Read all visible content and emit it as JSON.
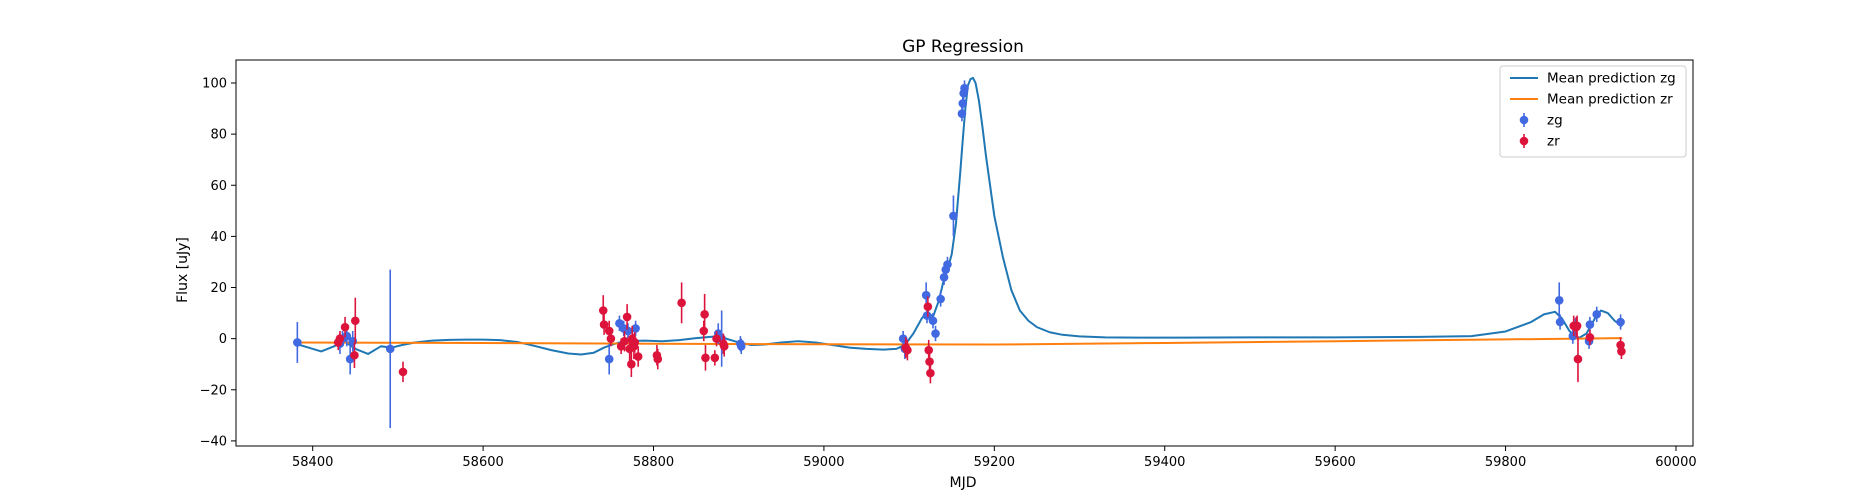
{
  "chart_data": {
    "type": "scatter",
    "title": "GP Regression",
    "xlabel": "MJD",
    "ylabel": "Flux [uJy]",
    "xlim": [
      58310,
      60020
    ],
    "ylim": [
      -42,
      109
    ],
    "xticks": [
      58400,
      58600,
      58800,
      59000,
      59200,
      59400,
      59600,
      59800,
      60000
    ],
    "yticks": [
      -40,
      -20,
      0,
      20,
      40,
      60,
      80,
      100
    ],
    "xtick_labels": [
      "58400",
      "58600",
      "58800",
      "59000",
      "59200",
      "59400",
      "59600",
      "59800",
      "60000"
    ],
    "ytick_labels": [
      "−40",
      "−20",
      "0",
      "20",
      "40",
      "60",
      "80",
      "100"
    ],
    "grid": false,
    "legend_position": "top-right",
    "lines": [
      {
        "name": "Mean prediction zg",
        "color": "#1f77b4",
        "x": [
          58380,
          58395,
          58410,
          58425,
          58437,
          58450,
          58465,
          58480,
          58493,
          58505,
          58520,
          58540,
          58560,
          58580,
          58600,
          58620,
          58640,
          58660,
          58680,
          58700,
          58715,
          58730,
          58742,
          58750,
          58760,
          58770,
          58790,
          58810,
          58830,
          58850,
          58870,
          58885,
          58900,
          58915,
          58930,
          58950,
          58970,
          58990,
          59010,
          59030,
          59050,
          59070,
          59085,
          59095,
          59105,
          59115,
          59122,
          59128,
          59135,
          59140,
          59145,
          59150,
          59155,
          59160,
          59163,
          59166,
          59169,
          59172,
          59175,
          59178,
          59182,
          59186,
          59190,
          59195,
          59200,
          59210,
          59220,
          59230,
          59240,
          59250,
          59265,
          59280,
          59300,
          59330,
          59370,
          59420,
          59500,
          59600,
          59700,
          59760,
          59800,
          59830,
          59845,
          59858,
          59866,
          59875,
          59885,
          59895,
          59905,
          59912,
          59920,
          59928,
          59936
        ],
        "y": [
          -2,
          -3.5,
          -5,
          -3,
          -1,
          -4,
          -6,
          -3,
          -3.5,
          -2.5,
          -1.5,
          -0.8,
          -0.5,
          -0.4,
          -0.4,
          -0.6,
          -1.3,
          -2.8,
          -4.5,
          -5.8,
          -6.2,
          -5.5,
          -3.5,
          -2.5,
          -1.5,
          -0.9,
          -0.8,
          -1,
          -0.6,
          0.2,
          0.8,
          0,
          -1.5,
          -2.5,
          -2.3,
          -1.5,
          -1,
          -1.5,
          -2.5,
          -3.5,
          -4,
          -4.3,
          -4,
          -2.5,
          2,
          8,
          10.5,
          8.5,
          15,
          22,
          27,
          33,
          45,
          65,
          78,
          90,
          99,
          101.5,
          102,
          100,
          93,
          83,
          72,
          60,
          48,
          32,
          19,
          11,
          7,
          4.5,
          2.5,
          1.5,
          0.9,
          0.5,
          0.4,
          0.4,
          0.5,
          0.5,
          0.7,
          1,
          2.8,
          6.5,
          9.5,
          10.5,
          8,
          3,
          0,
          2,
          8,
          11,
          10,
          7,
          5
        ]
      },
      {
        "name": "Mean prediction zr",
        "color": "#ff7f0e",
        "x": [
          58380,
          58600,
          58800,
          59000,
          59200,
          59400,
          59600,
          59800,
          59936
        ],
        "y": [
          -1.5,
          -1.7,
          -2,
          -2.2,
          -2.3,
          -1.7,
          -1,
          -0.3,
          0.2
        ]
      }
    ],
    "series": [
      {
        "name": "zg",
        "color": "#4169e1",
        "points": [
          {
            "x": 58382,
            "y": -1.5,
            "err": 8
          },
          {
            "x": 58432,
            "y": -2,
            "err": 4
          },
          {
            "x": 58435,
            "y": 0,
            "err": 3
          },
          {
            "x": 58440,
            "y": 1,
            "err": 4
          },
          {
            "x": 58444,
            "y": -8,
            "err": 6
          },
          {
            "x": 58447,
            "y": -1,
            "err": 4
          },
          {
            "x": 58491,
            "y": -4,
            "err": 31
          },
          {
            "x": 58748,
            "y": -8,
            "err": 6
          },
          {
            "x": 58760,
            "y": 6,
            "err": 3
          },
          {
            "x": 58765,
            "y": 4,
            "err": 3
          },
          {
            "x": 58770,
            "y": 3,
            "err": 3
          },
          {
            "x": 58779,
            "y": 4,
            "err": 3
          },
          {
            "x": 58876,
            "y": 2,
            "err": 4
          },
          {
            "x": 58880,
            "y": 0,
            "err": 11
          },
          {
            "x": 58902,
            "y": -2,
            "err": 3
          },
          {
            "x": 58903,
            "y": -3,
            "err": 3
          },
          {
            "x": 59093,
            "y": 0,
            "err": 3
          },
          {
            "x": 59095,
            "y": -4,
            "err": 4
          },
          {
            "x": 59120,
            "y": 17,
            "err": 5
          },
          {
            "x": 59121,
            "y": 9,
            "err": 3
          },
          {
            "x": 59128,
            "y": 7,
            "err": 3
          },
          {
            "x": 59131,
            "y": 2,
            "err": 3
          },
          {
            "x": 59137,
            "y": 15.5,
            "err": 3
          },
          {
            "x": 59141,
            "y": 24,
            "err": 3
          },
          {
            "x": 59143,
            "y": 27,
            "err": 3
          },
          {
            "x": 59145,
            "y": 29,
            "err": 3
          },
          {
            "x": 59152,
            "y": 48,
            "err": 8
          },
          {
            "x": 59162,
            "y": 88,
            "err": 3
          },
          {
            "x": 59163,
            "y": 92,
            "err": 3
          },
          {
            "x": 59164,
            "y": 96,
            "err": 3
          },
          {
            "x": 59165,
            "y": 98,
            "err": 3
          },
          {
            "x": 59863,
            "y": 15,
            "err": 7
          },
          {
            "x": 59864,
            "y": 6.5,
            "err": 3
          },
          {
            "x": 59879,
            "y": 1,
            "err": 3
          },
          {
            "x": 59882,
            "y": 5,
            "err": 3
          },
          {
            "x": 59898,
            "y": -1,
            "err": 3
          },
          {
            "x": 59899,
            "y": 5.5,
            "err": 3
          },
          {
            "x": 59907,
            "y": 9.5,
            "err": 3
          },
          {
            "x": 59935,
            "y": 6.5,
            "err": 3
          }
        ]
      },
      {
        "name": "zr",
        "color": "#dc143c",
        "points": [
          {
            "x": 58430,
            "y": -1.5,
            "err": 3
          },
          {
            "x": 58432,
            "y": 0,
            "err": 3
          },
          {
            "x": 58438,
            "y": 4.5,
            "err": 4
          },
          {
            "x": 58449,
            "y": -6.5,
            "err": 5
          },
          {
            "x": 58450,
            "y": 7,
            "err": 9
          },
          {
            "x": 58506,
            "y": -13,
            "err": 4
          },
          {
            "x": 58741,
            "y": 11,
            "err": 6
          },
          {
            "x": 58742,
            "y": 5.5,
            "err": 4
          },
          {
            "x": 58748,
            "y": 3,
            "err": 4
          },
          {
            "x": 58750,
            "y": 0,
            "err": 3
          },
          {
            "x": 58762,
            "y": -3,
            "err": 3
          },
          {
            "x": 58766,
            "y": -1,
            "err": 4
          },
          {
            "x": 58769,
            "y": 8.5,
            "err": 5
          },
          {
            "x": 58772,
            "y": -4,
            "err": 5
          },
          {
            "x": 58774,
            "y": -10,
            "err": 5
          },
          {
            "x": 58775,
            "y": 0,
            "err": 5
          },
          {
            "x": 58777,
            "y": -3,
            "err": 5
          },
          {
            "x": 58778,
            "y": -1.5,
            "err": 4
          },
          {
            "x": 58782,
            "y": -7,
            "err": 4
          },
          {
            "x": 58804,
            "y": -6.5,
            "err": 4
          },
          {
            "x": 58805,
            "y": -8,
            "err": 4
          },
          {
            "x": 58833,
            "y": 14,
            "err": 8
          },
          {
            "x": 58859,
            "y": 3,
            "err": 4
          },
          {
            "x": 58860,
            "y": 9.5,
            "err": 8
          },
          {
            "x": 58861,
            "y": -7.5,
            "err": 5
          },
          {
            "x": 58872,
            "y": -7.5,
            "err": 3
          },
          {
            "x": 58874,
            "y": 0,
            "err": 3
          },
          {
            "x": 58882,
            "y": -2,
            "err": 4
          },
          {
            "x": 58883,
            "y": -3,
            "err": 4
          },
          {
            "x": 59096,
            "y": -3.5,
            "err": 4
          },
          {
            "x": 59098,
            "y": -4.5,
            "err": 4
          },
          {
            "x": 59122,
            "y": 12.5,
            "err": 4
          },
          {
            "x": 59123,
            "y": -4.5,
            "err": 4
          },
          {
            "x": 59124,
            "y": -9,
            "err": 4
          },
          {
            "x": 59125,
            "y": -13.5,
            "err": 4
          },
          {
            "x": 59880,
            "y": 5,
            "err": 4
          },
          {
            "x": 59883,
            "y": 4.5,
            "err": 4
          },
          {
            "x": 59884,
            "y": 5,
            "err": 4
          },
          {
            "x": 59885,
            "y": -8,
            "err": 9
          },
          {
            "x": 59899,
            "y": 0.5,
            "err": 3
          },
          {
            "x": 59935,
            "y": -2.5,
            "err": 3
          },
          {
            "x": 59936,
            "y": -5,
            "err": 3
          }
        ]
      }
    ]
  }
}
